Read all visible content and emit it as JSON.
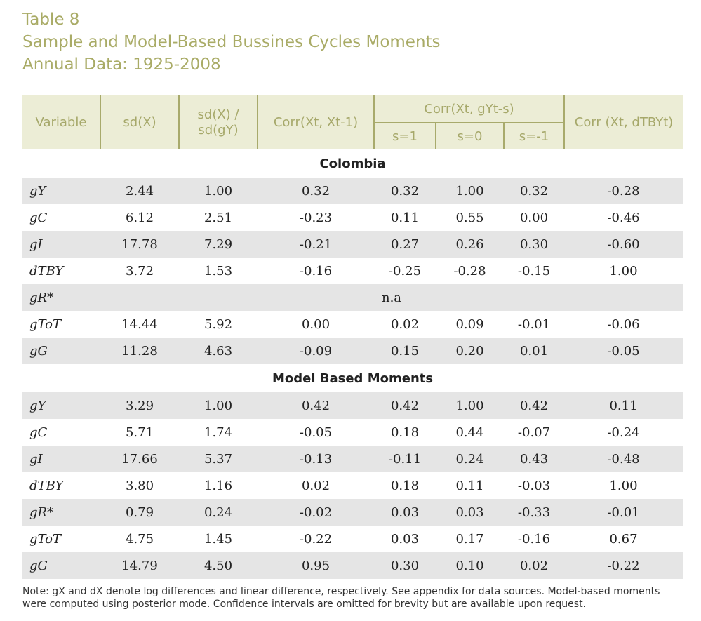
{
  "title": {
    "line1": "Table 8",
    "line2": "Sample and Model-Based Bussines Cycles Moments",
    "line3": "Annual Data: 1925-2008"
  },
  "header": {
    "variable": "Variable",
    "sd": "sd(X)",
    "sd_ratio_1": "sd(X) /",
    "sd_ratio_2": "sd(gY)",
    "autocorr": "Corr(Xt, Xt-1)",
    "corr_group": "Corr(Xt, gYt-s)",
    "s1": "s=1",
    "s0": "s=0",
    "sm1": "s=-1",
    "corr_tb": "Corr (Xt, dTBYt)"
  },
  "sections": [
    {
      "title": "Colombia",
      "rows": [
        {
          "var": "gY",
          "c": [
            "2.44",
            "1.00",
            "0.32",
            "0.32",
            "1.00",
            "0.32",
            "-0.28"
          ]
        },
        {
          "var": "gC",
          "c": [
            "6.12",
            "2.51",
            "-0.23",
            "0.11",
            "0.55",
            "0.00",
            "-0.46"
          ]
        },
        {
          "var": "gI",
          "c": [
            "17.78",
            "7.29",
            "-0.21",
            "0.27",
            "0.26",
            "0.30",
            "-0.60"
          ]
        },
        {
          "var": "dTBY",
          "c": [
            "3.72",
            "1.53",
            "-0.16",
            "-0.25",
            "-0.28",
            "-0.15",
            "1.00"
          ]
        },
        {
          "var": "gR*",
          "na": "n.a"
        },
        {
          "var": "gToT",
          "c": [
            "14.44",
            "5.92",
            "0.00",
            "0.02",
            "0.09",
            "-0.01",
            "-0.06"
          ]
        },
        {
          "var": "gG",
          "c": [
            "11.28",
            "4.63",
            "-0.09",
            "0.15",
            "0.20",
            "0.01",
            "-0.05"
          ]
        }
      ]
    },
    {
      "title": "Model Based Moments",
      "rows": [
        {
          "var": "gY",
          "c": [
            "3.29",
            "1.00",
            "0.42",
            "0.42",
            "1.00",
            "0.42",
            "0.11"
          ]
        },
        {
          "var": "gC",
          "c": [
            "5.71",
            "1.74",
            "-0.05",
            "0.18",
            "0.44",
            "-0.07",
            "-0.24"
          ]
        },
        {
          "var": "gI",
          "c": [
            "17.66",
            "5.37",
            "-0.13",
            "-0.11",
            "0.24",
            "0.43",
            "-0.48"
          ]
        },
        {
          "var": "dTBY",
          "c": [
            "3.80",
            "1.16",
            "0.02",
            "0.18",
            "0.11",
            "-0.03",
            "1.00"
          ]
        },
        {
          "var": "gR*",
          "c": [
            "0.79",
            "0.24",
            "-0.02",
            "0.03",
            "0.03",
            "-0.33",
            "-0.01"
          ]
        },
        {
          "var": "gToT",
          "c": [
            "4.75",
            "1.45",
            "-0.22",
            "0.03",
            "0.17",
            "-0.16",
            "0.67"
          ]
        },
        {
          "var": "gG",
          "c": [
            "14.79",
            "4.50",
            "0.95",
            "0.30",
            "0.10",
            "0.02",
            "-0.22"
          ]
        }
      ]
    }
  ],
  "note": "Note: gX and dX denote log differences and linear difference, respectively. See appendix for data sources. Model-based moments were computed using posterior mode. Confidence intervals are omitted for brevity but are available upon request."
}
